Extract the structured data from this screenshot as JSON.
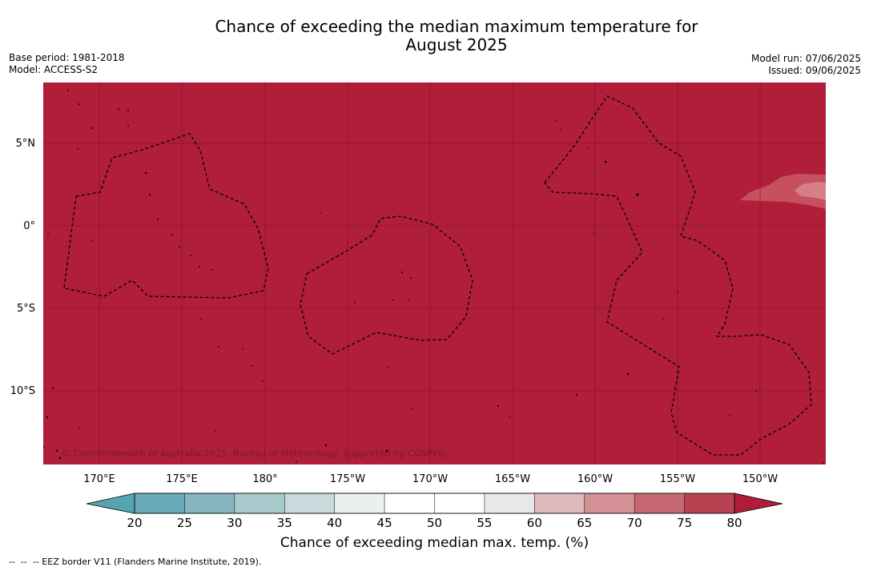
{
  "title_line1": "Chance of exceeding the median maximum temperature for",
  "title_line2": "August 2025",
  "base_period": "Base period: 1981-2018",
  "model": "Model: ACCESS-S2",
  "model_run": "Model run: 07/06/2025",
  "issued": "Issued: 09/06/2025",
  "attribution": "© Commonwealth of Australia 2025, Bureau of Meteorology, supported by COSPPac",
  "lat_labels": [
    "5°N",
    "0°",
    "5°S",
    "10°S"
  ],
  "lon_labels": [
    "170°E",
    "175°E",
    "180°",
    "175°W",
    "170°W",
    "165°W",
    "160°W",
    "155°W",
    "150°W"
  ],
  "colorbar": {
    "ticks": [
      "20",
      "25",
      "30",
      "35",
      "40",
      "45",
      "50",
      "55",
      "60",
      "65",
      "70",
      "75",
      "80"
    ],
    "colors": [
      "#67aab9",
      "#88b5c0",
      "#a8c9cc",
      "#c8dadc",
      "#ebeff0",
      "#ffffff",
      "#ffffff",
      "#e8e8e8",
      "#dfb9bc",
      "#d39196",
      "#c56872",
      "#b84252"
    ],
    "low_extend_color": "#56a4b2",
    "high_extend_color": "#b01c39",
    "label": "Chance of exceeding median max. temp. (%)"
  },
  "colors": {
    "field": "#b01e3a",
    "anomaly_light": "#c6505e",
    "anomaly_lighter": "#d77f88"
  },
  "footnote": "--  --  -- EEZ border V11 (Flanders Marine Institute, 2019)."
}
